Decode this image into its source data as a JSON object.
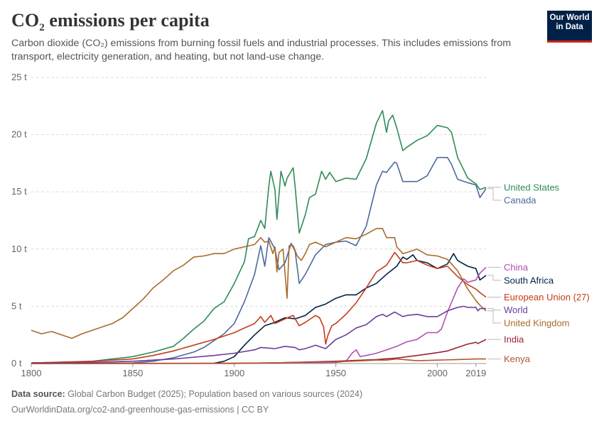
{
  "header": {
    "title_main": "CO",
    "title_sub": "2",
    "title_rest": " emissions per capita",
    "subtitle": "Carbon dioxide (CO₂) emissions from burning fossil fuels and industrial processes. This includes emissions from transport, electricity generation, and heating, but not land-use change.",
    "logo_line1": "Our World",
    "logo_line2": "in Data"
  },
  "footer": {
    "source_label": "Data source:",
    "source_text": " Global Carbon Budget (2025); Population based on various sources (2024)",
    "url_license": "OurWorldinData.org/co2-and-greenhouse-gas-emissions | CC BY"
  },
  "chart_data": {
    "type": "line",
    "xlim": [
      1800,
      2024
    ],
    "ylim": [
      0,
      25
    ],
    "y_ticks": [
      0,
      5,
      10,
      15,
      20,
      25
    ],
    "y_tick_labels": [
      "0 t",
      "5 t",
      "10 t",
      "15 t",
      "20 t",
      "25 t"
    ],
    "x_ticks": [
      1800,
      1850,
      1900,
      1950,
      2000,
      2019
    ],
    "x_tick_labels": [
      "1800",
      "1850",
      "1900",
      "1950",
      "2000",
      "2019"
    ],
    "grid": true,
    "legend_placement": "right (labels at line ends)",
    "series": [
      {
        "name": "United States",
        "color": "#2e8b57",
        "x": [
          1800,
          1820,
          1830,
          1840,
          1850,
          1860,
          1870,
          1875,
          1880,
          1885,
          1890,
          1895,
          1900,
          1905,
          1907,
          1910,
          1913,
          1915,
          1917,
          1918,
          1920,
          1921,
          1923,
          1925,
          1926,
          1929,
          1930,
          1932,
          1935,
          1937,
          1940,
          1943,
          1945,
          1947,
          1950,
          1955,
          1960,
          1965,
          1970,
          1973,
          1975,
          1976,
          1978,
          1980,
          1983,
          1985,
          1990,
          1995,
          2000,
          2005,
          2007,
          2010,
          2015,
          2019,
          2021,
          2024
        ],
        "y": [
          0.05,
          0.1,
          0.2,
          0.4,
          0.6,
          1.0,
          1.5,
          2.2,
          3.0,
          3.7,
          4.8,
          5.4,
          7.0,
          8.9,
          10.9,
          11.1,
          12.5,
          11.8,
          15.5,
          16.8,
          15.2,
          12.6,
          16.8,
          15.5,
          16.2,
          17.1,
          15.4,
          11.4,
          13.0,
          14.5,
          14.8,
          16.8,
          16.1,
          16.7,
          15.9,
          16.2,
          16.1,
          17.9,
          21.0,
          22.1,
          20.2,
          21.2,
          21.7,
          20.6,
          18.6,
          18.9,
          19.5,
          19.9,
          20.8,
          20.6,
          20.2,
          18.0,
          16.2,
          15.7,
          15.2,
          15.4
        ]
      },
      {
        "name": "Canada",
        "color": "#4c6a9c",
        "x": [
          1800,
          1830,
          1850,
          1860,
          1870,
          1880,
          1885,
          1890,
          1895,
          1900,
          1905,
          1910,
          1913,
          1915,
          1917,
          1920,
          1922,
          1925,
          1928,
          1930,
          1932,
          1935,
          1940,
          1945,
          1950,
          1955,
          1960,
          1965,
          1970,
          1973,
          1975,
          1979,
          1980,
          1983,
          1985,
          1990,
          1995,
          2000,
          2005,
          2007,
          2010,
          2015,
          2019,
          2021,
          2024
        ],
        "y": [
          0,
          0.01,
          0.05,
          0.2,
          0.5,
          1.0,
          1.4,
          2.0,
          2.6,
          3.5,
          5.4,
          7.8,
          10.3,
          8.5,
          11.0,
          10.0,
          8.2,
          8.8,
          10.5,
          9.8,
          7.0,
          7.8,
          9.5,
          10.4,
          10.6,
          10.7,
          10.3,
          12.0,
          15.6,
          16.8,
          16.7,
          17.6,
          17.5,
          15.9,
          15.9,
          15.9,
          16.4,
          18.0,
          18.0,
          17.4,
          16.1,
          15.8,
          15.6,
          14.5,
          15.3
        ]
      },
      {
        "name": "South Africa",
        "color": "#002147",
        "x": [
          1890,
          1895,
          1900,
          1905,
          1910,
          1915,
          1920,
          1925,
          1930,
          1935,
          1940,
          1945,
          1950,
          1955,
          1960,
          1965,
          1970,
          1975,
          1980,
          1983,
          1985,
          1988,
          1990,
          1995,
          2000,
          2005,
          2008,
          2010,
          2015,
          2019,
          2021,
          2024
        ],
        "y": [
          0.02,
          0.2,
          0.6,
          1.6,
          2.5,
          3.3,
          3.6,
          4.0,
          3.9,
          4.2,
          4.9,
          5.2,
          5.7,
          6.0,
          6.0,
          6.6,
          7.0,
          7.8,
          8.5,
          9.3,
          9.1,
          9.5,
          9.0,
          8.8,
          8.3,
          8.7,
          9.6,
          9.0,
          8.5,
          8.3,
          7.3,
          7.7
        ]
      },
      {
        "name": "China",
        "color": "#b050b0",
        "x": [
          1800,
          1900,
          1950,
          1955,
          1958,
          1960,
          1962,
          1965,
          1970,
          1975,
          1980,
          1985,
          1990,
          1995,
          2000,
          2002,
          2005,
          2010,
          2013,
          2015,
          2019,
          2021,
          2024
        ],
        "y": [
          0,
          0.01,
          0.1,
          0.2,
          0.9,
          1.2,
          0.6,
          0.7,
          0.9,
          1.2,
          1.5,
          1.9,
          2.1,
          2.7,
          2.7,
          3.0,
          4.5,
          6.6,
          7.4,
          7.1,
          7.3,
          7.9,
          8.4
        ]
      },
      {
        "name": "European Union (27)",
        "color": "#c43c1a",
        "x": [
          1800,
          1830,
          1850,
          1860,
          1870,
          1880,
          1890,
          1900,
          1905,
          1910,
          1913,
          1915,
          1918,
          1920,
          1925,
          1929,
          1930,
          1932,
          1935,
          1940,
          1942,
          1944,
          1945,
          1946,
          1948,
          1950,
          1955,
          1960,
          1965,
          1970,
          1975,
          1979,
          1980,
          1983,
          1985,
          1990,
          1995,
          2000,
          2005,
          2010,
          2015,
          2019,
          2021,
          2024
        ],
        "y": [
          0.05,
          0.2,
          0.4,
          0.7,
          1.1,
          1.6,
          2.1,
          2.7,
          3.1,
          3.5,
          4.1,
          3.6,
          4.2,
          3.5,
          3.9,
          4.2,
          3.9,
          3.3,
          3.6,
          4.2,
          4.0,
          3.2,
          1.7,
          2.4,
          3.3,
          3.5,
          4.3,
          5.3,
          6.6,
          8.0,
          8.6,
          9.7,
          9.5,
          8.8,
          8.8,
          9.0,
          8.6,
          8.3,
          8.5,
          7.6,
          6.9,
          6.5,
          6.2,
          5.8
        ]
      },
      {
        "name": "United Kingdom",
        "color": "#a76b2a",
        "x": [
          1800,
          1805,
          1810,
          1815,
          1820,
          1825,
          1830,
          1835,
          1840,
          1845,
          1850,
          1855,
          1860,
          1865,
          1870,
          1875,
          1880,
          1885,
          1890,
          1895,
          1900,
          1905,
          1910,
          1913,
          1915,
          1917,
          1919,
          1920,
          1921,
          1922,
          1924,
          1926,
          1927,
          1929,
          1931,
          1933,
          1935,
          1937,
          1940,
          1945,
          1950,
          1955,
          1960,
          1965,
          1970,
          1973,
          1975,
          1979,
          1980,
          1983,
          1985,
          1990,
          1995,
          2000,
          2005,
          2010,
          2015,
          2019,
          2021,
          2024
        ],
        "y": [
          2.9,
          2.6,
          2.8,
          2.5,
          2.2,
          2.6,
          2.9,
          3.2,
          3.5,
          4.0,
          4.8,
          5.6,
          6.6,
          7.3,
          8.1,
          8.6,
          9.3,
          9.4,
          9.6,
          9.6,
          10.0,
          10.2,
          10.4,
          11.0,
          10.6,
          10.7,
          9.6,
          10.2,
          8.0,
          9.7,
          10.0,
          5.7,
          10.3,
          10.3,
          9.4,
          9.0,
          9.6,
          10.4,
          10.6,
          10.2,
          10.6,
          11.0,
          10.9,
          11.3,
          11.8,
          11.8,
          11.0,
          11.0,
          10.2,
          9.6,
          9.7,
          10.0,
          9.5,
          9.4,
          9.1,
          8.1,
          6.5,
          5.5,
          5.1,
          4.6
        ]
      },
      {
        "name": "World",
        "color": "#6a3d9a",
        "x": [
          1800,
          1830,
          1850,
          1870,
          1890,
          1900,
          1910,
          1913,
          1920,
          1925,
          1930,
          1932,
          1935,
          1940,
          1945,
          1950,
          1955,
          1960,
          1965,
          1970,
          1973,
          1975,
          1979,
          1980,
          1983,
          1985,
          1990,
          1995,
          2000,
          2005,
          2010,
          2013,
          2015,
          2019,
          2020,
          2021,
          2024
        ],
        "y": [
          0.06,
          0.1,
          0.2,
          0.4,
          0.7,
          0.9,
          1.2,
          1.4,
          1.3,
          1.5,
          1.4,
          1.2,
          1.3,
          1.6,
          1.3,
          2.1,
          2.5,
          3.1,
          3.4,
          4.1,
          4.3,
          4.1,
          4.5,
          4.4,
          4.1,
          4.2,
          4.3,
          4.1,
          4.1,
          4.6,
          4.9,
          5.0,
          4.9,
          4.9,
          4.6,
          4.8,
          4.8
        ]
      },
      {
        "name": "India",
        "color": "#9b2335",
        "x": [
          1800,
          1900,
          1920,
          1950,
          1960,
          1970,
          1980,
          1990,
          2000,
          2005,
          2010,
          2015,
          2019,
          2020,
          2024
        ],
        "y": [
          0,
          0.03,
          0.06,
          0.2,
          0.27,
          0.35,
          0.48,
          0.7,
          0.95,
          1.1,
          1.4,
          1.7,
          1.85,
          1.75,
          2.1
        ]
      },
      {
        "name": "Kenya",
        "color": "#b5562c",
        "x": [
          1800,
          1900,
          1950,
          1960,
          1970,
          1975,
          1980,
          1990,
          2000,
          2010,
          2019,
          2024
        ],
        "y": [
          0,
          0.01,
          0.15,
          0.22,
          0.3,
          0.3,
          0.4,
          0.24,
          0.3,
          0.35,
          0.4,
          0.4
        ]
      }
    ]
  }
}
